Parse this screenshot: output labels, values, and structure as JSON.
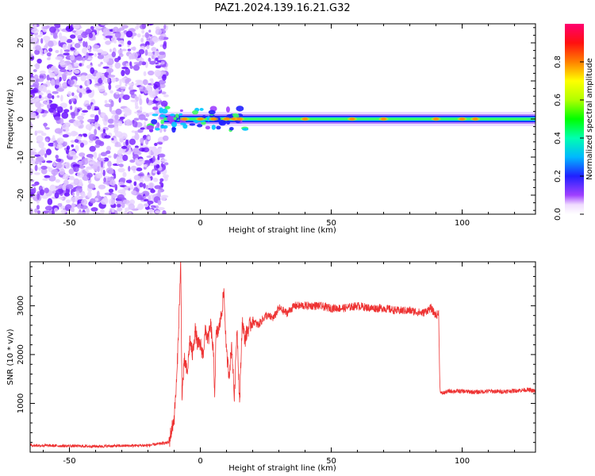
{
  "title": "PAZ1.2024.139.16.21.G32",
  "chart_data": [
    {
      "type": "heatmap",
      "title": "PAZ1.2024.139.16.21.G32",
      "xlabel": "Height of straight line (km)",
      "ylabel": "Frequency (Hz)",
      "xlim": [
        -65,
        128
      ],
      "ylim": [
        -25,
        25
      ],
      "xticks": [
        -50,
        0,
        50,
        100
      ],
      "yticks": [
        -20,
        -10,
        0,
        10,
        20
      ],
      "colorbar": {
        "label": "Normalized spectral amplitude",
        "range": [
          0,
          1
        ],
        "ticks": [
          "0.0",
          "0.2",
          "0.4",
          "0.6",
          "0.8"
        ]
      },
      "features": {
        "noise_region_x": [
          -65,
          -13
        ],
        "signal_line_frequency_hz": 0,
        "signal_line_x": [
          -20,
          128
        ]
      }
    },
    {
      "type": "line",
      "xlabel": "Height of straight line (km)",
      "ylabel": "SNR (10 * v/v)",
      "xlim": [
        -65,
        128
      ],
      "ylim": [
        0,
        3900
      ],
      "xticks": [
        -50,
        0,
        50,
        100
      ],
      "yticks": [
        1000,
        2000,
        3000
      ],
      "color": "#ee3333",
      "series": [
        {
          "x": [
            -65,
            -40,
            -20,
            -12,
            -10,
            -9,
            -8,
            -7.5,
            -7,
            -6,
            -5,
            -4,
            -3,
            -2,
            -1,
            0,
            1,
            2,
            3,
            4,
            5,
            5.5,
            6,
            7,
            8,
            9,
            10,
            11,
            12,
            13,
            14,
            15,
            16,
            17,
            18,
            20,
            22,
            25,
            28,
            30,
            33,
            36,
            40,
            45,
            50,
            55,
            60,
            65,
            70,
            75,
            80,
            85,
            88,
            90,
            91,
            91.5,
            92,
            95,
            100,
            105,
            110,
            115,
            120,
            125,
            128
          ],
          "y": [
            140,
            120,
            140,
            200,
            700,
            1500,
            3000,
            3900,
            1200,
            1900,
            1600,
            2300,
            2000,
            2500,
            2200,
            2200,
            2000,
            2500,
            2300,
            2600,
            2000,
            1200,
            2400,
            2500,
            2800,
            3300,
            2000,
            1600,
            2200,
            1100,
            2600,
            1000,
            2700,
            2300,
            2500,
            2700,
            2600,
            2800,
            2750,
            2950,
            2850,
            3000,
            3000,
            3000,
            2950,
            2950,
            3000,
            2950,
            2950,
            2900,
            2900,
            2850,
            2950,
            2800,
            2850,
            1300,
            1200,
            1250,
            1250,
            1230,
            1250,
            1240,
            1260,
            1280,
            1250
          ]
        }
      ]
    }
  ]
}
